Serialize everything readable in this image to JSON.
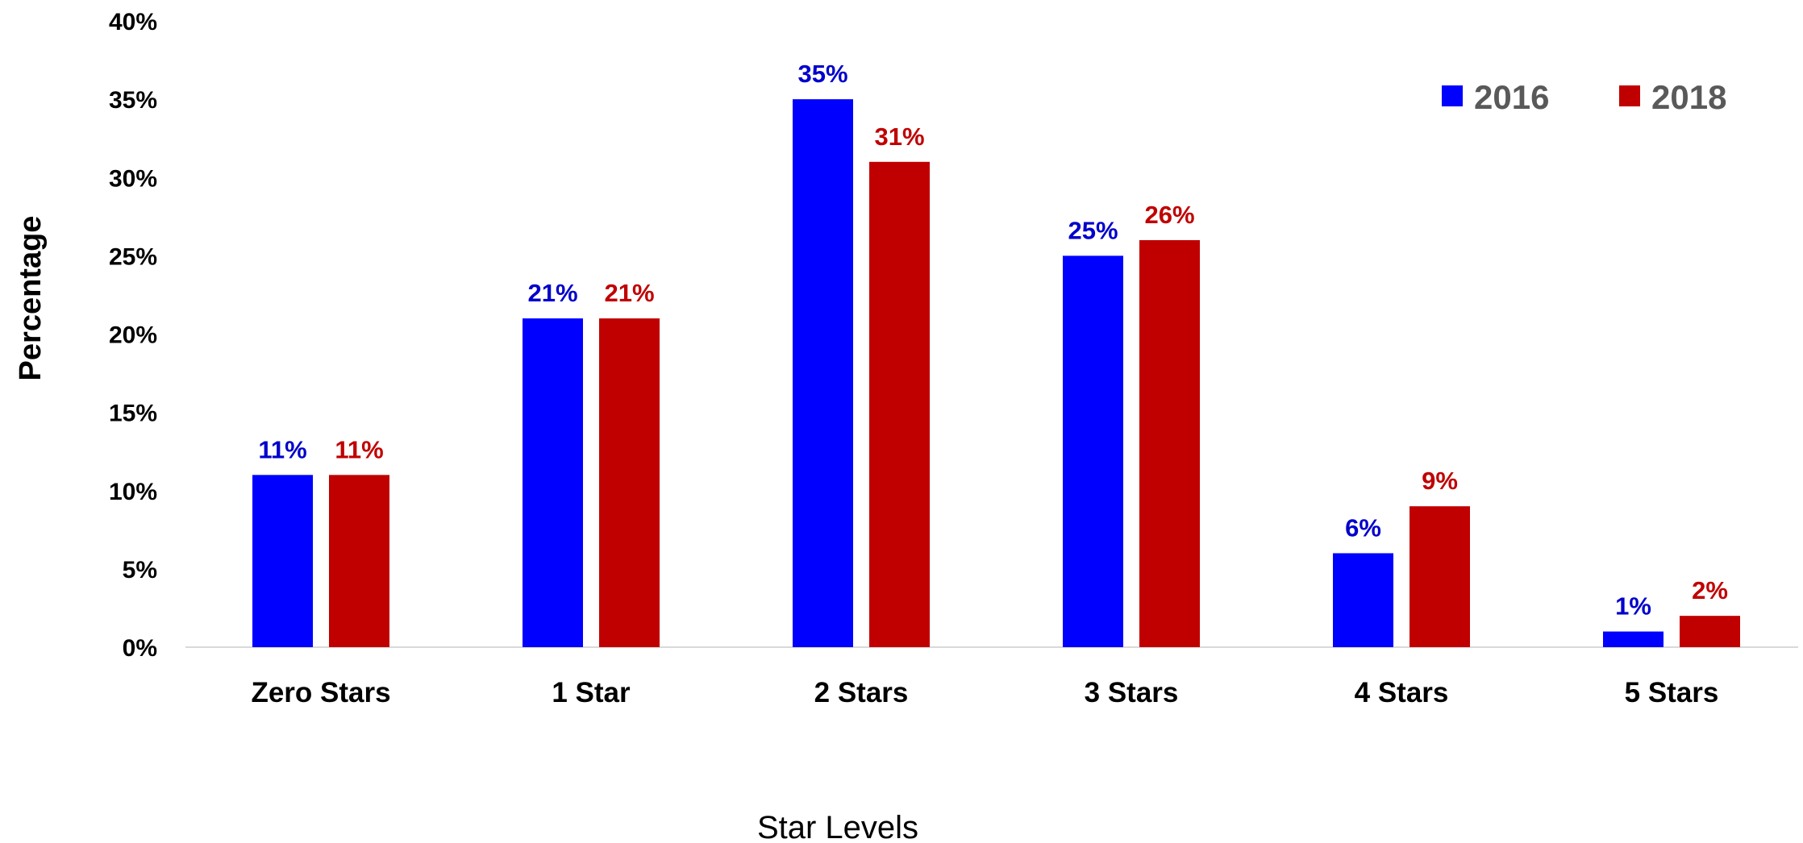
{
  "chart_data": {
    "type": "bar",
    "title": "",
    "xlabel": "Star Levels",
    "ylabel": "Percentage",
    "ylim": [
      0,
      40
    ],
    "y_ticks": [
      0,
      5,
      10,
      15,
      20,
      25,
      30,
      35,
      40
    ],
    "y_tick_format": "{v}%",
    "grid": false,
    "legend_position": "top-right",
    "categories": [
      "Zero Stars",
      "1 Star",
      "2 Stars",
      "3 Stars",
      "4 Stars",
      "5 Stars"
    ],
    "series": [
      {
        "name": "2016",
        "color": "#0000ff",
        "label_color": "#0000cc",
        "values": [
          11,
          21,
          35,
          25,
          6,
          1
        ],
        "data_labels": [
          "11%",
          "21%",
          "35%",
          "25%",
          "6%",
          "1%"
        ]
      },
      {
        "name": "2018",
        "color": "#c00000",
        "label_color": "#c00000",
        "values": [
          11,
          21,
          31,
          26,
          9,
          2
        ],
        "data_labels": [
          "11%",
          "21%",
          "31%",
          "26%",
          "9%",
          "2%"
        ]
      }
    ]
  }
}
